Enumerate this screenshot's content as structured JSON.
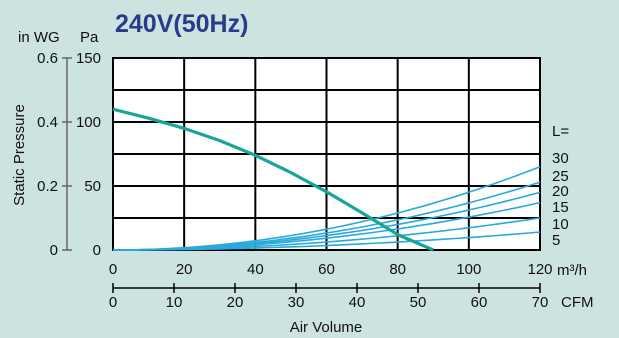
{
  "chart_data": {
    "type": "line",
    "title": "240V(50Hz)",
    "ylabel": "Static Pressure",
    "xlabel": "Air Volume",
    "left_unit": "in WG",
    "right_unit": "Pa",
    "x_unit": "m3/h",
    "x_unit_display": "m³/h",
    "x2_unit": "CFM",
    "legend_header": "L=",
    "xlim": [
      0,
      120
    ],
    "ylim": [
      0,
      150
    ],
    "x_ticks": [
      "0",
      "20",
      "40",
      "60",
      "80",
      "100",
      "120"
    ],
    "y_ticks": [
      "0",
      "50",
      "100",
      "150"
    ],
    "in_wg_ticks": [
      {
        "label": "0",
        "pa": 0
      },
      {
        "label": "0.2",
        "pa": 50
      },
      {
        "label": "0.4",
        "pa": 100
      },
      {
        "label": "0.6",
        "pa": 150
      }
    ],
    "cfm_ticks": [
      "0",
      "10",
      "20",
      "30",
      "40",
      "50",
      "60",
      "70"
    ],
    "grid": true,
    "fan_curve": {
      "color": "#16a596",
      "x": [
        0,
        10,
        20,
        30,
        40,
        50,
        60,
        70,
        80,
        90
      ],
      "y": [
        110,
        103,
        95,
        85.5,
        74,
        60.5,
        45.5,
        29,
        12,
        0
      ]
    },
    "system_curves": {
      "color": "#2aa9dc",
      "labels": [
        "30",
        "25",
        "20",
        "15",
        "10",
        "5"
      ],
      "values_at_120": [
        65,
        53,
        45,
        37,
        25,
        14
      ]
    }
  }
}
